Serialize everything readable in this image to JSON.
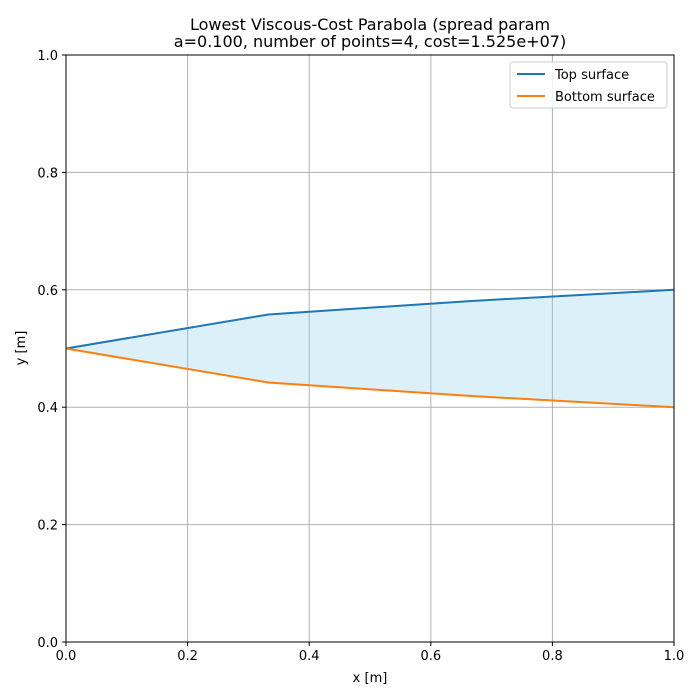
{
  "chart_data": {
    "type": "line",
    "title_line1": "Lowest Viscous-Cost Parabola (spread param",
    "title_line2": "a=0.100, number of points=4, cost=1.525e+07)",
    "xlabel": "x [m]",
    "ylabel": "y [m]",
    "xlim": [
      0,
      1
    ],
    "ylim": [
      0,
      1
    ],
    "xticks": [
      "0.0",
      "0.2",
      "0.4",
      "0.6",
      "0.8",
      "1.0"
    ],
    "yticks": [
      "0.0",
      "0.2",
      "0.4",
      "0.6",
      "0.8",
      "1.0"
    ],
    "grid": true,
    "legend_position": "top-right",
    "fill_color": "#87CEEB",
    "series": [
      {
        "name": "Top surface",
        "color": "#1f77b4",
        "x": [
          0.0,
          0.333,
          0.667,
          1.0
        ],
        "y": [
          0.5,
          0.558,
          0.581,
          0.6
        ]
      },
      {
        "name": "Bottom surface",
        "color": "#ff7f0e",
        "x": [
          0.0,
          0.333,
          0.667,
          1.0
        ],
        "y": [
          0.5,
          0.442,
          0.419,
          0.4
        ]
      }
    ]
  }
}
